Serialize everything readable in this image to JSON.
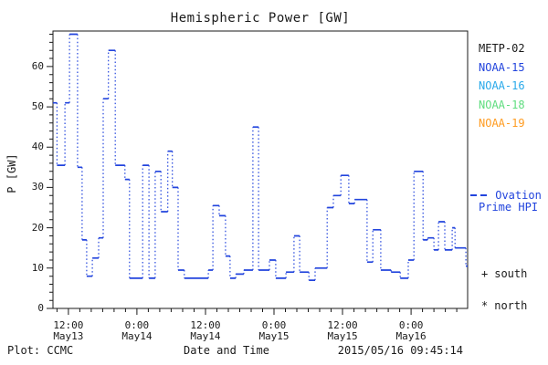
{
  "title": "Hemispheric Power [GW]",
  "footer": {
    "plot_credit": "Plot: CCMC",
    "xlabel": "Date and Time",
    "generated": "2015/05/16 09:45:14"
  },
  "legend": {
    "satellites": [
      {
        "label": "METP-02",
        "color": "#1a1a1a"
      },
      {
        "label": "NOAA-15",
        "color": "#2244dd"
      },
      {
        "label": "NOAA-16",
        "color": "#29a9ea"
      },
      {
        "label": "NOAA-18",
        "color": "#5fdd7f"
      },
      {
        "label": "NOAA-19",
        "color": "#ff9c22"
      }
    ],
    "model": {
      "line1": "Ovation",
      "line2": "Prime HPI",
      "color": "#2244dd"
    },
    "markers": [
      {
        "symbol": "+",
        "label": "south"
      },
      {
        "symbol": "*",
        "label": "north"
      }
    ]
  },
  "chart_data": {
    "type": "line",
    "step": true,
    "title": "Hemispheric Power [GW]",
    "xlabel": "Date and Time",
    "ylabel": "P [GW]",
    "x_unit": "hours since 2015-05-13 00:00 UT",
    "x_range_hours": [
      9.3,
      81.9
    ],
    "ylim": [
      0,
      68.8
    ],
    "y_major_ticks": [
      0,
      10,
      20,
      30,
      40,
      50,
      60
    ],
    "y_minor_step": 2,
    "x_minor_step_hours": 2,
    "grid": false,
    "legend_position": "right outside",
    "x_major_ticks": [
      {
        "hour": 12,
        "time": "12:00",
        "date": "May13"
      },
      {
        "hour": 24,
        "time": "0:00",
        "date": "May14"
      },
      {
        "hour": 36,
        "time": "12:00",
        "date": "May14"
      },
      {
        "hour": 48,
        "time": "0:00",
        "date": "May15"
      },
      {
        "hour": 60,
        "time": "12:00",
        "date": "May15"
      },
      {
        "hour": 72,
        "time": "0:00",
        "date": "May16"
      }
    ],
    "series": [
      {
        "name": "Hemispheric Power HPI",
        "color": "#2244dd",
        "style": "solid horizontal steps, dotted vertical connectors",
        "points": [
          [
            9.3,
            51
          ],
          [
            10.0,
            35.5
          ],
          [
            11.4,
            51
          ],
          [
            12.2,
            68
          ],
          [
            13.6,
            35
          ],
          [
            14.4,
            17
          ],
          [
            15.2,
            8
          ],
          [
            16.2,
            12.5
          ],
          [
            17.3,
            17.5
          ],
          [
            18.1,
            52
          ],
          [
            19.0,
            64
          ],
          [
            20.2,
            35.5
          ],
          [
            21.9,
            32
          ],
          [
            22.7,
            7.5
          ],
          [
            25.0,
            35.5
          ],
          [
            26.1,
            7.5
          ],
          [
            27.2,
            34
          ],
          [
            28.2,
            24
          ],
          [
            29.4,
            39
          ],
          [
            30.2,
            30
          ],
          [
            31.2,
            9.5
          ],
          [
            32.3,
            7.5
          ],
          [
            36.5,
            9.5
          ],
          [
            37.3,
            25.5
          ],
          [
            38.4,
            23
          ],
          [
            39.5,
            13
          ],
          [
            40.3,
            7.5
          ],
          [
            41.3,
            8.5
          ],
          [
            42.7,
            9.5
          ],
          [
            44.3,
            45
          ],
          [
            45.3,
            9.5
          ],
          [
            47.2,
            12
          ],
          [
            48.3,
            7.5
          ],
          [
            50.1,
            9
          ],
          [
            51.5,
            18
          ],
          [
            52.5,
            9
          ],
          [
            54.1,
            7
          ],
          [
            55.2,
            10
          ],
          [
            57.3,
            25
          ],
          [
            58.4,
            28
          ],
          [
            59.7,
            33
          ],
          [
            61.1,
            26
          ],
          [
            62.1,
            27
          ],
          [
            64.3,
            11.5
          ],
          [
            65.3,
            19.5
          ],
          [
            66.7,
            9.5
          ],
          [
            68.5,
            9
          ],
          [
            70.1,
            7.5
          ],
          [
            71.5,
            12
          ],
          [
            72.5,
            34
          ],
          [
            74.1,
            17
          ],
          [
            74.9,
            17.5
          ],
          [
            76.0,
            14.5
          ],
          [
            76.8,
            21.5
          ],
          [
            77.9,
            14.5
          ],
          [
            79.2,
            20
          ],
          [
            79.7,
            15
          ],
          [
            81.6,
            10.5
          ]
        ]
      }
    ]
  }
}
